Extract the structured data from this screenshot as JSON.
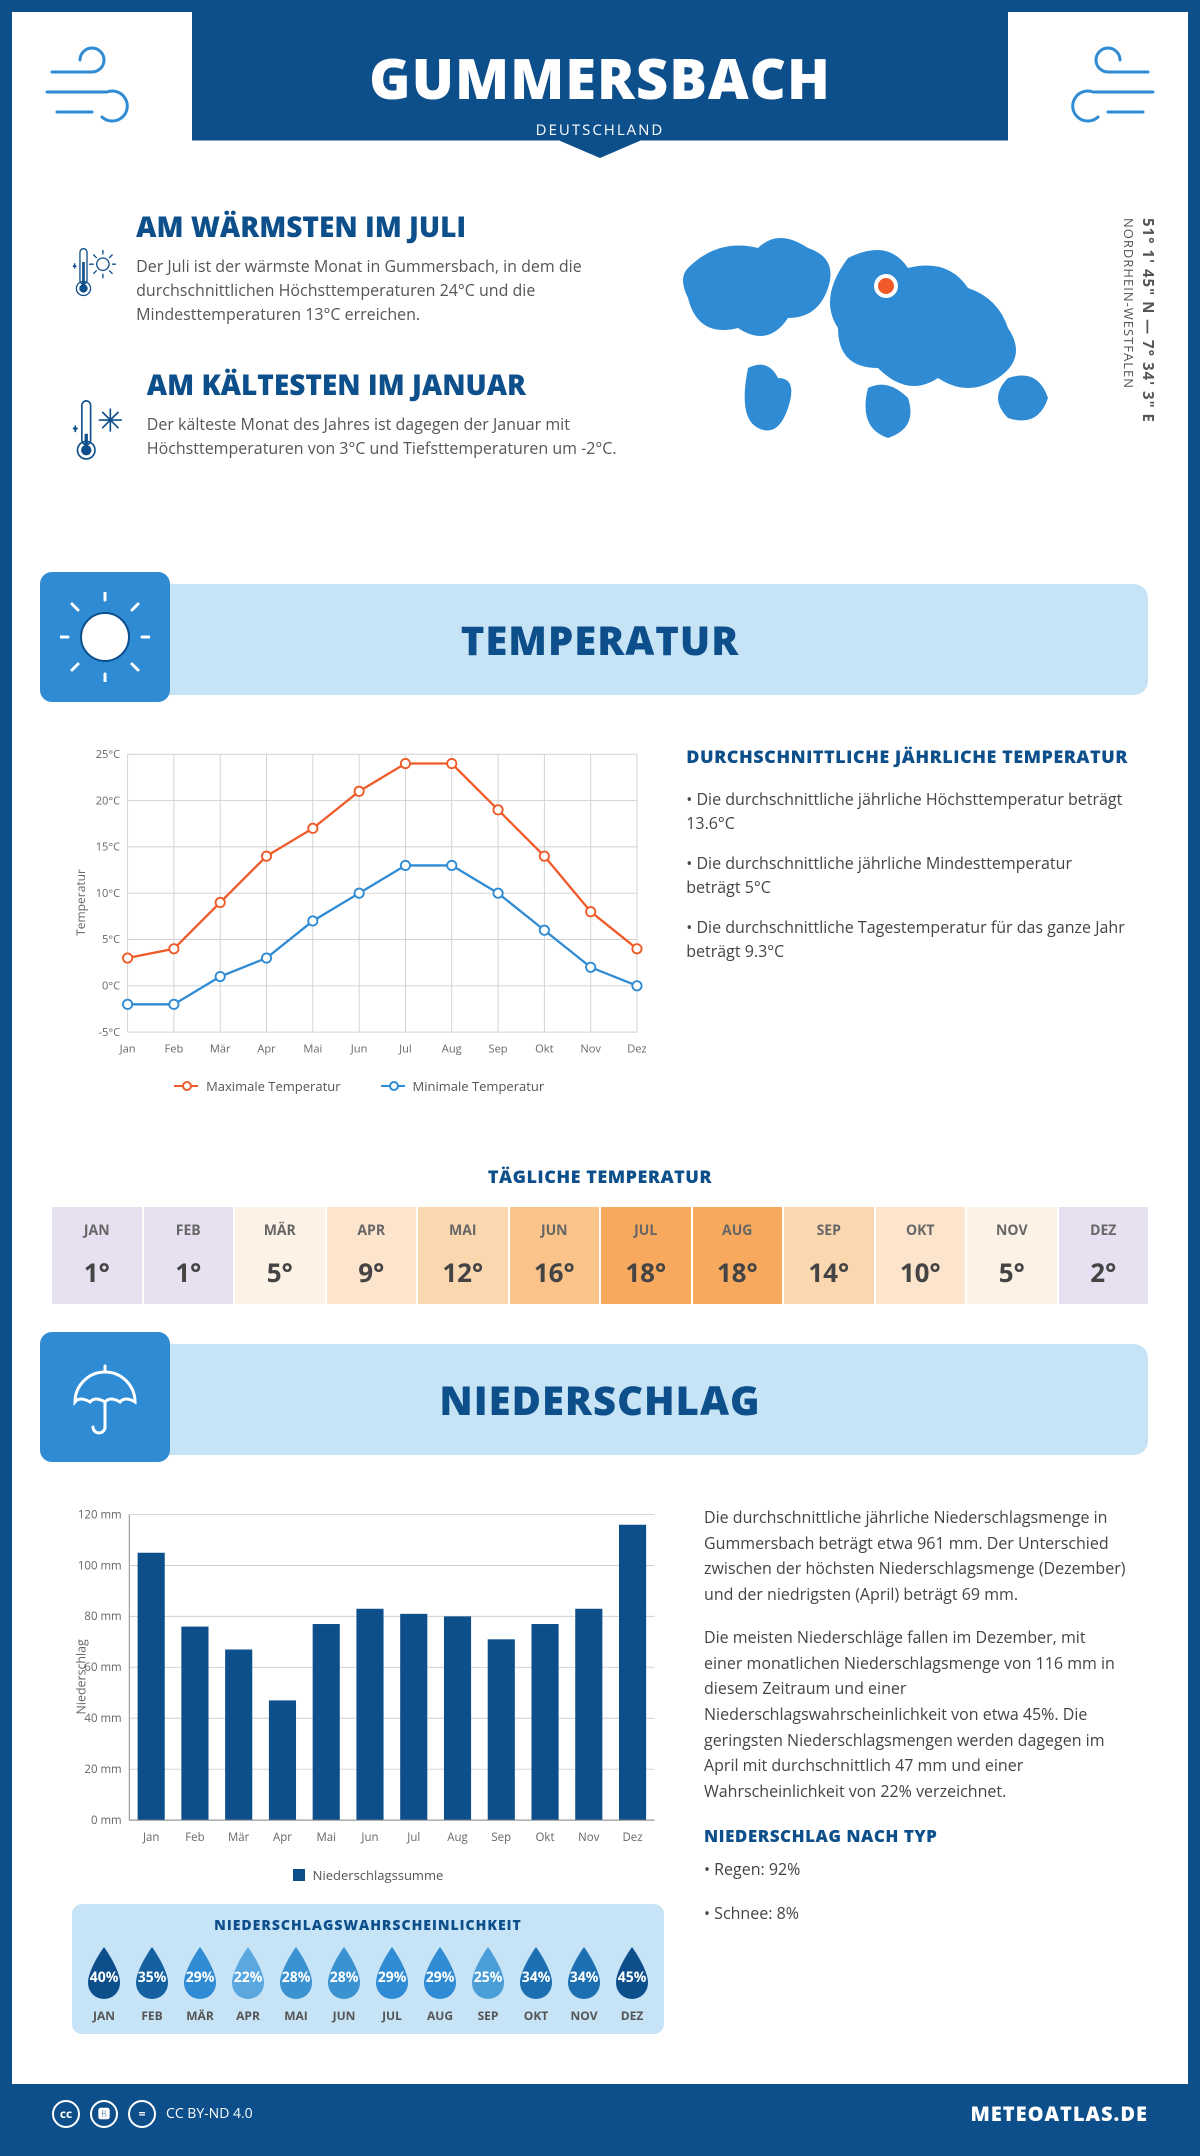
{
  "colors": {
    "primary": "#0d4f8b",
    "header_band": "#c7e3f6",
    "accent": "#2e8bd4",
    "max_line": "#f05a28",
    "min_line": "#2e8bd4",
    "bar": "#0d4f8b",
    "grid": "#d0d0d0"
  },
  "header": {
    "city": "GUMMERSBACH",
    "country": "DEUTSCHLAND"
  },
  "location": {
    "coords": "51° 1' 45\" N — 7° 34' 3\" E",
    "region": "NORDRHEIN-WESTFALEN"
  },
  "intro": {
    "warm": {
      "title": "AM WÄRMSTEN IM JULI",
      "text": "Der Juli ist der wärmste Monat in Gummersbach, in dem die durchschnittlichen Höchsttemperaturen 24°C und die Mindesttemperaturen 13°C erreichen."
    },
    "cold": {
      "title": "AM KÄLTESTEN IM JANUAR",
      "text": "Der kälteste Monat des Jahres ist dagegen der Januar mit Höchsttemperaturen von 3°C und Tiefsttemperaturen um -2°C."
    }
  },
  "months": [
    "Jan",
    "Feb",
    "Mär",
    "Apr",
    "Mai",
    "Jun",
    "Jul",
    "Aug",
    "Sep",
    "Okt",
    "Nov",
    "Dez"
  ],
  "months_upper": [
    "JAN",
    "FEB",
    "MÄR",
    "APR",
    "MAI",
    "JUN",
    "JUL",
    "AUG",
    "SEP",
    "OKT",
    "NOV",
    "DEZ"
  ],
  "temperature": {
    "section_title": "TEMPERATUR",
    "chart": {
      "type": "line",
      "ylabel": "Temperatur",
      "ylim": [
        -5,
        25
      ],
      "ytick_step": 5,
      "y_suffix": "°C",
      "series": {
        "max": {
          "label": "Maximale Temperatur",
          "color": "#f05a28",
          "values": [
            3,
            4,
            9,
            14,
            17,
            21,
            24,
            24,
            19,
            14,
            8,
            4
          ]
        },
        "min": {
          "label": "Minimale Temperatur",
          "color": "#2e8bd4",
          "values": [
            -2,
            -2,
            1,
            3,
            7,
            10,
            13,
            13,
            10,
            6,
            2,
            0
          ]
        }
      },
      "line_width": 2.5,
      "marker_size": 5
    },
    "summary": {
      "title": "DURCHSCHNITTLICHE JÄHRLICHE TEMPERATUR",
      "bullets": [
        "• Die durchschnittliche jährliche Höchsttemperatur beträgt 13.6°C",
        "• Die durchschnittliche jährliche Mindesttemperatur beträgt 5°C",
        "• Die durchschnittliche Tagestemperatur für das ganze Jahr beträgt 9.3°C"
      ]
    },
    "daily": {
      "title": "TÄGLICHE TEMPERATUR",
      "values": [
        "1°",
        "1°",
        "5°",
        "9°",
        "12°",
        "16°",
        "18°",
        "18°",
        "14°",
        "10°",
        "5°",
        "2°"
      ],
      "bg_colors": [
        "#e6e0f0",
        "#e6e0f0",
        "#fdf2e6",
        "#fce5cc",
        "#fbd7b0",
        "#fac38a",
        "#f7a95e",
        "#f7a95e",
        "#fbd7b0",
        "#fce5cc",
        "#fdf2e6",
        "#e6e0f0"
      ]
    }
  },
  "precip": {
    "section_title": "NIEDERSCHLAG",
    "chart": {
      "type": "bar",
      "ylabel": "Niederschlag",
      "ylim": [
        0,
        120
      ],
      "ytick_step": 20,
      "y_suffix": " mm",
      "values": [
        105,
        76,
        67,
        47,
        77,
        83,
        81,
        80,
        71,
        77,
        83,
        116
      ],
      "bar_color": "#0d4f8b",
      "legend": "Niederschlagssumme"
    },
    "text1": "Die durchschnittliche jährliche Niederschlagsmenge in Gummersbach beträgt etwa 961 mm. Der Unterschied zwischen der höchsten Niederschlagsmenge (Dezember) und der niedrigsten (April) beträgt 69 mm.",
    "text2": "Die meisten Niederschläge fallen im Dezember, mit einer monatlichen Niederschlagsmenge von 116 mm in diesem Zeitraum und einer Niederschlagswahrscheinlichkeit von etwa 45%. Die geringsten Niederschlagsmengen werden dagegen im April mit durchschnittlich 47 mm und einer Wahrscheinlichkeit von 22% verzeichnet.",
    "by_type": {
      "title": "NIEDERSCHLAG NACH TYP",
      "items": [
        "• Regen: 92%",
        "• Schnee: 8%"
      ]
    },
    "probability": {
      "title": "NIEDERSCHLAGSWAHRSCHEINLICHKEIT",
      "values": [
        "40%",
        "35%",
        "29%",
        "22%",
        "28%",
        "28%",
        "29%",
        "29%",
        "25%",
        "34%",
        "34%",
        "45%"
      ],
      "colors": [
        "#0d4f8b",
        "#1560a0",
        "#2e8bd4",
        "#5ba8e0",
        "#3a92d0",
        "#3a92d0",
        "#2e8bd4",
        "#2e8bd4",
        "#4a9ed8",
        "#1c6fb0",
        "#1c6fb0",
        "#0d4f8b"
      ]
    }
  },
  "footer": {
    "license": "CC BY-ND 4.0",
    "site": "METEOATLAS.DE"
  }
}
